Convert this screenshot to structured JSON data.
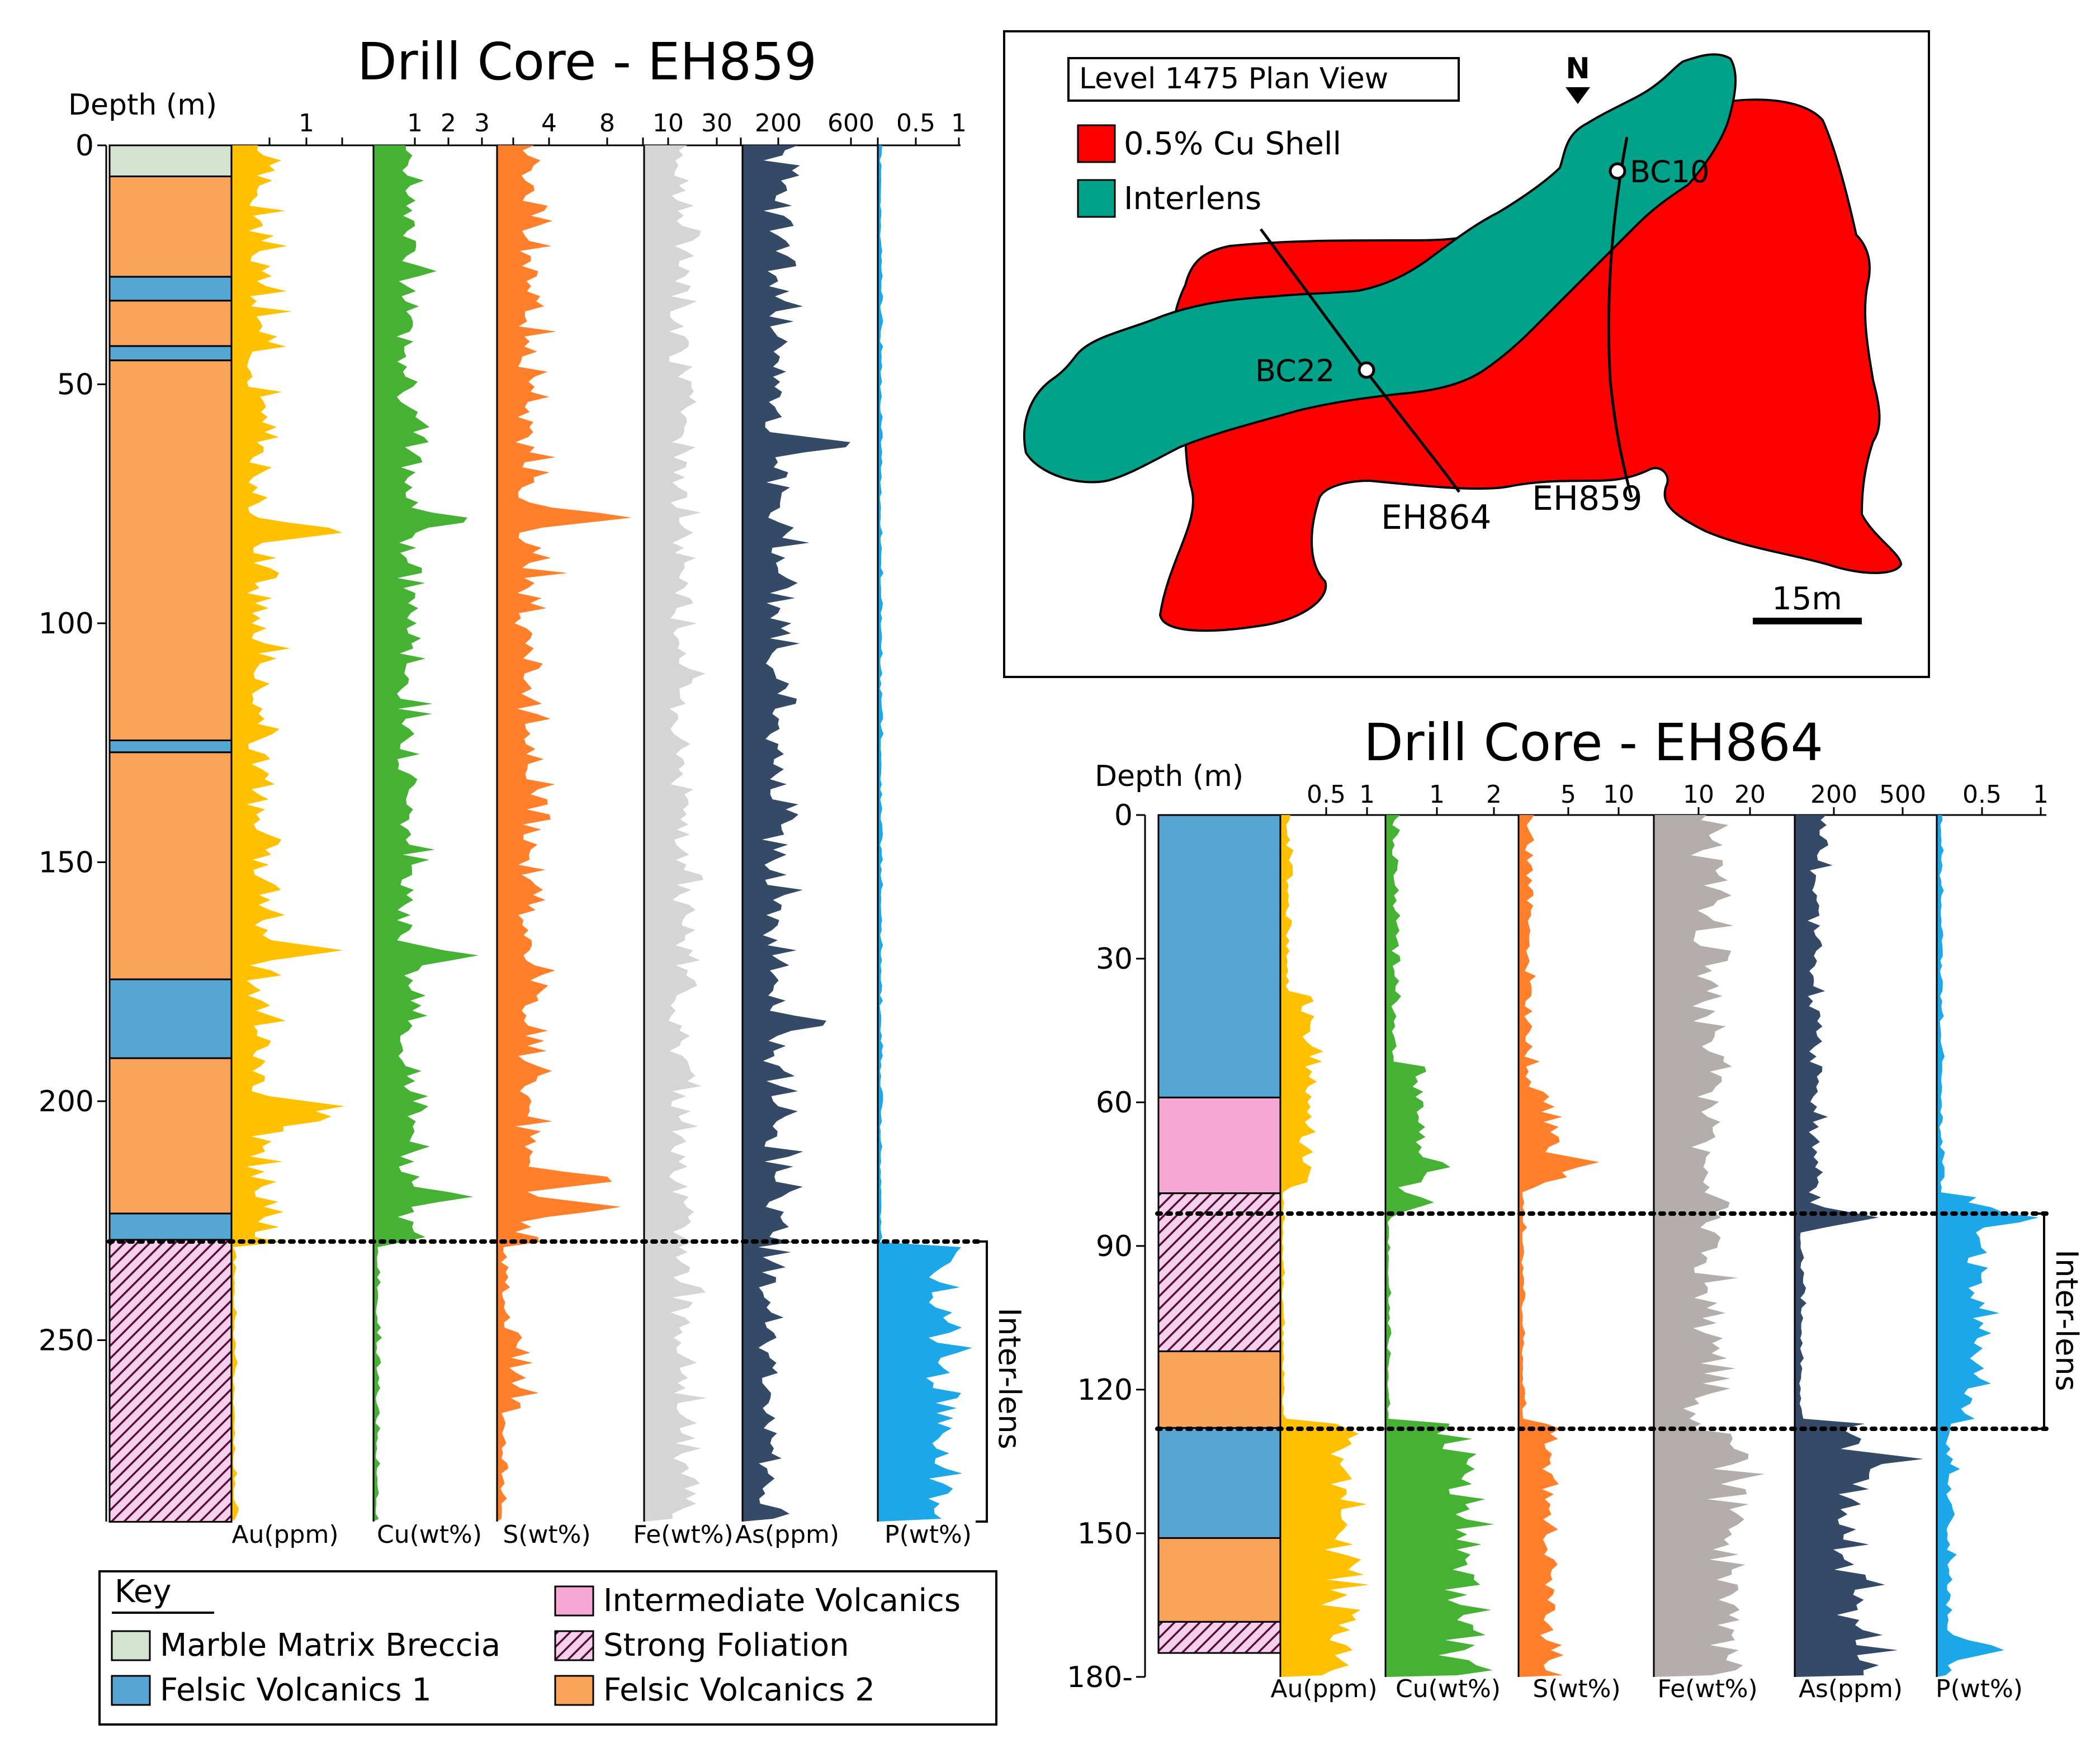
{
  "colors": {
    "marble": "#d4e3cf",
    "felsic1": "#56a6d4",
    "felsic2": "#f8a357",
    "intermediate": "#f8a8d4",
    "foliation_bg": "#f5d0ea",
    "foliation_line": "#5a0a3c",
    "au": "#ffc000",
    "cu": "#45b233",
    "s": "#ff7f2a",
    "fe_eh859": "#d5d5d5",
    "fe_eh864": "#b3aeab",
    "as": "#344a66",
    "p": "#1ba7e8",
    "cu_shell": "#ff0000",
    "interlens": "#00a28a"
  },
  "eh859": {
    "title": "Drill Core - EH859",
    "depth_label": "Depth (m)",
    "depth_ticks": [
      "0",
      "50",
      "100",
      "150",
      "200",
      "250"
    ],
    "scales": {
      "au": [
        "1"
      ],
      "cu": [
        "1",
        "2",
        "3"
      ],
      "s": [
        "4",
        "8"
      ],
      "fe": [
        "10",
        "30"
      ],
      "as": [
        "200",
        "600"
      ],
      "p": [
        "0.5",
        "1"
      ]
    },
    "track_labels": [
      "Au(ppm)",
      "Cu(wt%)",
      "S(wt%)",
      "Fe(wt%)",
      "As(ppm)",
      "P(wt%)"
    ],
    "interlens_label": "Inter-lens",
    "lithology": [
      {
        "from": 0,
        "to": 6.5,
        "unit": "marble"
      },
      {
        "from": 6.5,
        "to": 27.5,
        "unit": "felsic2"
      },
      {
        "from": 27.5,
        "to": 32.5,
        "unit": "felsic1"
      },
      {
        "from": 32.5,
        "to": 42,
        "unit": "felsic2"
      },
      {
        "from": 42,
        "to": 45,
        "unit": "felsic1"
      },
      {
        "from": 45,
        "to": 124.5,
        "unit": "felsic2"
      },
      {
        "from": 124.5,
        "to": 127,
        "unit": "felsic1"
      },
      {
        "from": 127,
        "to": 174.5,
        "unit": "felsic2"
      },
      {
        "from": 174.5,
        "to": 191,
        "unit": "felsic1"
      },
      {
        "from": 191,
        "to": 223.5,
        "unit": "felsic2"
      },
      {
        "from": 223.5,
        "to": 229,
        "unit": "felsic1"
      },
      {
        "from": 229,
        "to": 288,
        "unit": "foliation"
      }
    ]
  },
  "eh864": {
    "title": "Drill Core - EH864",
    "depth_label": "Depth (m)",
    "depth_ticks": [
      "0",
      "30",
      "60",
      "90",
      "120",
      "150",
      "180-"
    ],
    "scales": {
      "au": [
        "0.5",
        "1"
      ],
      "cu": [
        "1",
        "2"
      ],
      "s": [
        "5",
        "10"
      ],
      "fe": [
        "10",
        "20"
      ],
      "as": [
        "200",
        "500"
      ],
      "p": [
        "0.5",
        "1"
      ]
    },
    "track_labels": [
      "Au(ppm)",
      "Cu(wt%)",
      "S(wt%)",
      "Fe(wt%)",
      "As(ppm)",
      "P(wt%)"
    ],
    "interlens_label": "Inter-lens",
    "lithology": [
      {
        "from": 0,
        "to": 59,
        "unit": "felsic1"
      },
      {
        "from": 59,
        "to": 79,
        "unit": "intermediate"
      },
      {
        "from": 79,
        "to": 112,
        "unit": "foliation"
      },
      {
        "from": 112,
        "to": 128,
        "unit": "felsic2"
      },
      {
        "from": 128,
        "to": 151,
        "unit": "felsic1"
      },
      {
        "from": 151,
        "to": 168.5,
        "unit": "felsic2"
      },
      {
        "from": 168.5,
        "to": 175,
        "unit": "foliation"
      }
    ]
  },
  "plan": {
    "title": "Level 1475 Plan View",
    "north": "N",
    "legend": [
      {
        "label": "0.5% Cu Shell",
        "color_key": "cu_shell"
      },
      {
        "label": "Interlens",
        "color_key": "interlens"
      }
    ],
    "points": [
      "BC10",
      "BC22"
    ],
    "holes": [
      "EH864",
      "EH859"
    ],
    "scale_label": "15m"
  },
  "key": {
    "title": "Key",
    "items": [
      {
        "label": "Marble Matrix Breccia",
        "unit": "marble"
      },
      {
        "label": "Felsic Volcanics 1",
        "unit": "felsic1"
      },
      {
        "label": "Intermediate Volcanics",
        "unit": "intermediate"
      },
      {
        "label": "Strong Foliation",
        "unit": "foliation"
      },
      {
        "label": "Felsic Volcanics 2",
        "unit": "felsic2"
      }
    ]
  }
}
